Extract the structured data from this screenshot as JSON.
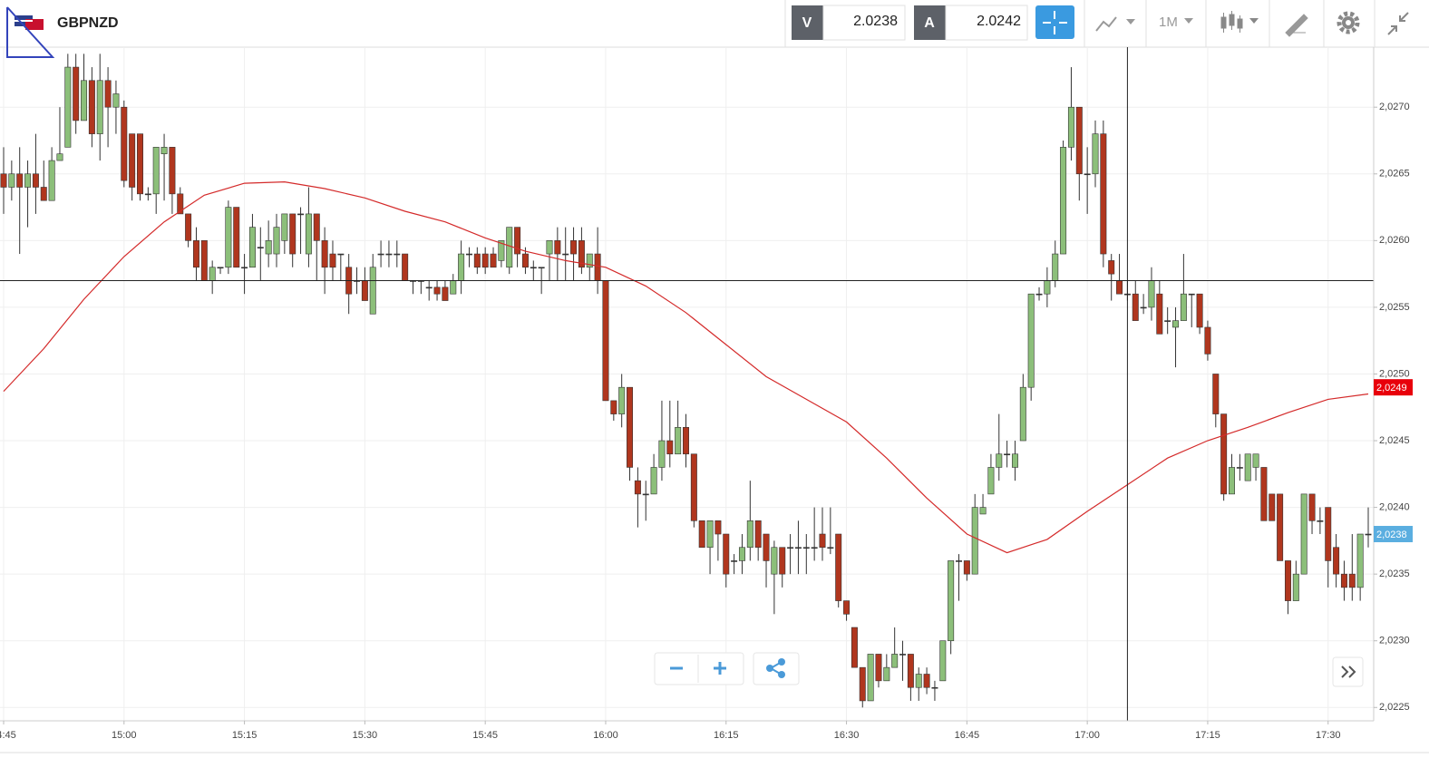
{
  "header": {
    "symbol": "GBPNZD",
    "bid_label": "V",
    "bid": "2.0238",
    "ask_label": "A",
    "ask": "2.0242",
    "interval": "1M"
  },
  "chart_data": {
    "type": "candlestick",
    "x": [
      "14:45",
      "14:46",
      "14:47",
      "14:48",
      "14:49",
      "14:50",
      "14:51",
      "14:52",
      "14:53",
      "14:54",
      "14:55",
      "14:56",
      "14:57",
      "14:58",
      "14:59",
      "15:00",
      "15:01",
      "15:02",
      "15:03",
      "15:04",
      "15:05",
      "15:06",
      "15:07",
      "15:08",
      "15:09",
      "15:10",
      "15:11",
      "15:12",
      "15:13",
      "15:14",
      "15:15",
      "15:16",
      "15:17",
      "15:18",
      "15:19",
      "15:20",
      "15:21",
      "15:22",
      "15:23",
      "15:24",
      "15:25",
      "15:26",
      "15:27",
      "15:28",
      "15:29",
      "15:30",
      "15:31",
      "15:32",
      "15:33",
      "15:34",
      "15:35",
      "15:36",
      "15:37",
      "15:38",
      "15:39",
      "15:40",
      "15:41",
      "15:42",
      "15:43",
      "15:44",
      "15:45",
      "15:46",
      "15:47",
      "15:48",
      "15:49",
      "15:50",
      "15:51",
      "15:52",
      "15:53",
      "15:54",
      "15:55",
      "15:56",
      "15:57",
      "15:58",
      "15:59",
      "16:00",
      "16:01",
      "16:02",
      "16:03",
      "16:04",
      "16:05",
      "16:06",
      "16:07",
      "16:08",
      "16:09",
      "16:10",
      "16:11",
      "16:12",
      "16:13",
      "16:14",
      "16:15",
      "16:16",
      "16:17",
      "16:18",
      "16:19",
      "16:20",
      "16:21",
      "16:22",
      "16:23",
      "16:24",
      "16:25",
      "16:26",
      "16:27",
      "16:28",
      "16:29",
      "16:30",
      "16:31",
      "16:32",
      "16:33",
      "16:34",
      "16:35",
      "16:36",
      "16:37",
      "16:38",
      "16:39",
      "16:40",
      "16:41",
      "16:42",
      "16:43",
      "16:44",
      "16:45",
      "16:46",
      "16:47",
      "16:48",
      "16:49",
      "16:50",
      "16:51",
      "16:52",
      "16:53",
      "16:54",
      "16:55",
      "16:56",
      "16:57",
      "16:58",
      "16:59",
      "17:00",
      "17:01",
      "17:02",
      "17:03",
      "17:04",
      "17:05",
      "17:06",
      "17:07",
      "17:08",
      "17:09",
      "17:10",
      "17:11",
      "17:12",
      "17:13",
      "17:14",
      "17:15",
      "17:16",
      "17:17",
      "17:18",
      "17:19",
      "17:20",
      "17:21",
      "17:22",
      "17:23",
      "17:24",
      "17:25",
      "17:26",
      "17:27",
      "17:28",
      "17:29",
      "17:30",
      "17:31",
      "17:32",
      "17:33",
      "17:34",
      "17:35"
    ],
    "open": [
      2.0265,
      2.0264,
      2.0265,
      2.0264,
      2.0265,
      2.0264,
      2.0263,
      2.0266,
      2.0267,
      2.0273,
      2.0269,
      2.0272,
      2.0268,
      2.0272,
      2.027,
      2.027,
      2.0268,
      2.0268,
      2.02635,
      2.02635,
      2.02665,
      2.0267,
      2.02635,
      2.0262,
      2.026,
      2.026,
      2.0257,
      2.0258,
      2.0258,
      2.02625,
      2.0258,
      2.0258,
      2.02595,
      2.0259,
      2.0259,
      2.026,
      2.0262,
      2.0262,
      2.0259,
      2.0262,
      2.026,
      2.0259,
      2.0259,
      2.0258,
      2.0257,
      2.0257,
      2.02545,
      2.0259,
      2.0259,
      2.0259,
      2.0259,
      2.0257,
      2.0257,
      2.02565,
      2.02565,
      2.02565,
      2.0256,
      2.0257,
      2.0259,
      2.0259,
      2.0259,
      2.0259,
      2.02585,
      2.0258,
      2.0261,
      2.0259,
      2.0258,
      2.0258,
      2.0259,
      2.026,
      2.0259,
      2.026,
      2.026,
      2.0258,
      2.0259,
      2.0257,
      2.0248,
      2.0247,
      2.0249,
      2.0242,
      2.0241,
      2.0241,
      2.0243,
      2.0245,
      2.0244,
      2.0246,
      2.0244,
      2.0239,
      2.0237,
      2.0239,
      2.0238,
      2.0236,
      2.0236,
      2.0237,
      2.0239,
      2.0238,
      2.0235,
      2.0237,
      2.0237,
      2.0237,
      2.0237,
      2.0237,
      2.0238,
      2.0237,
      2.0238,
      2.0233,
      2.0231,
      2.0228,
      2.02255,
      2.0229,
      2.0227,
      2.0228,
      2.0229,
      2.0229,
      2.02265,
      2.02275,
      2.02265,
      2.0227,
      2.023,
      2.0236,
      2.0236,
      2.0235,
      2.02395,
      2.0241,
      2.0243,
      2.0244,
      2.0243,
      2.0245,
      2.0249,
      2.0256,
      2.0256,
      2.0257,
      2.0259,
      2.0267,
      2.027,
      2.0265,
      2.0265,
      2.0268,
      2.02585,
      2.0257,
      2.0256,
      2.0256,
      2.0255,
      2.0255,
      2.0256,
      2.0254,
      2.02535,
      2.0254,
      2.0256,
      2.0256,
      2.02535,
      2.025,
      2.0247,
      2.0241,
      2.0243,
      2.0242,
      2.0243,
      2.0243,
      2.0241,
      2.0241,
      2.0236,
      2.0233,
      2.0235,
      2.0241,
      2.0239,
      2.024,
      2.0237,
      2.0235,
      2.0235,
      2.0234,
      2.0238
    ],
    "high": [
      2.0267,
      2.0266,
      2.0267,
      2.0266,
      2.0268,
      2.0266,
      2.0267,
      2.027,
      2.0274,
      2.0274,
      2.0274,
      2.0273,
      2.0274,
      2.0273,
      2.0272,
      2.02705,
      2.0268,
      2.0268,
      2.0264,
      2.0267,
      2.0268,
      2.0267,
      2.0264,
      2.0262,
      2.0261,
      2.026,
      2.02585,
      2.0258,
      2.0263,
      2.02625,
      2.0259,
      2.0262,
      2.0261,
      2.02615,
      2.0262,
      2.0262,
      2.0262,
      2.02625,
      2.0264,
      2.0262,
      2.0261,
      2.026,
      2.0259,
      2.0259,
      2.0258,
      2.0258,
      2.0259,
      2.026,
      2.026,
      2.026,
      2.0259,
      2.0257,
      2.0257,
      2.0257,
      2.0257,
      2.0257,
      2.02575,
      2.026,
      2.02595,
      2.02595,
      2.02595,
      2.02595,
      2.026,
      2.0261,
      2.0261,
      2.02595,
      2.02585,
      2.0258,
      2.026,
      2.0261,
      2.0261,
      2.0261,
      2.0261,
      2.0259,
      2.0261,
      2.0257,
      2.0248,
      2.025,
      2.0249,
      2.0243,
      2.0242,
      2.0244,
      2.0248,
      2.0248,
      2.0248,
      2.0247,
      2.0244,
      2.0239,
      2.0239,
      2.0239,
      2.0238,
      2.02365,
      2.0238,
      2.0242,
      2.0239,
      2.0238,
      2.02375,
      2.0237,
      2.0238,
      2.0239,
      2.0238,
      2.024,
      2.024,
      2.024,
      2.0238,
      2.0233,
      2.0231,
      2.0228,
      2.0229,
      2.0229,
      2.0229,
      2.0231,
      2.023,
      2.0229,
      2.0228,
      2.0228,
      2.0227,
      2.023,
      2.0236,
      2.02365,
      2.0236,
      2.0241,
      2.0241,
      2.0244,
      2.0247,
      2.0245,
      2.0245,
      2.025,
      2.0256,
      2.02565,
      2.0258,
      2.026,
      2.02675,
      2.0273,
      2.027,
      2.0267,
      2.0269,
      2.0269,
      2.0259,
      2.0259,
      2.0257,
      2.0257,
      2.0256,
      2.0258,
      2.0257,
      2.0255,
      2.0255,
      2.0259,
      2.0256,
      2.0256,
      2.0254,
      2.025,
      2.0247,
      2.0244,
      2.0244,
      2.0244,
      2.0244,
      2.0243,
      2.0241,
      2.0241,
      2.0236,
      2.0236,
      2.0241,
      2.0241,
      2.024,
      2.024,
      2.0238,
      2.0236,
      2.0238,
      2.0238,
      2.024
    ],
    "low": [
      2.0262,
      2.0263,
      2.0259,
      2.0261,
      2.0262,
      2.0263,
      2.0263,
      2.0266,
      2.0267,
      2.0268,
      2.0269,
      2.0267,
      2.0266,
      2.0267,
      2.0268,
      2.0264,
      2.0263,
      2.0263,
      2.0263,
      2.0262,
      2.0263,
      2.0262,
      2.0262,
      2.02595,
      2.0257,
      2.0257,
      2.0256,
      2.02575,
      2.02575,
      2.0258,
      2.0256,
      2.0258,
      2.0257,
      2.0258,
      2.0258,
      2.0259,
      2.0258,
      2.0259,
      2.0258,
      2.0257,
      2.0256,
      2.0257,
      2.0257,
      2.02545,
      2.0256,
      2.02555,
      2.02545,
      2.0258,
      2.0258,
      2.0258,
      2.0257,
      2.0256,
      2.0256,
      2.02555,
      2.02555,
      2.02555,
      2.0256,
      2.0256,
      2.0258,
      2.02575,
      2.02575,
      2.0258,
      2.0258,
      2.02575,
      2.0258,
      2.02575,
      2.0257,
      2.0256,
      2.0257,
      2.0257,
      2.0257,
      2.0257,
      2.02575,
      2.0257,
      2.0256,
      2.0248,
      2.02465,
      2.0246,
      2.0242,
      2.02385,
      2.0239,
      2.0241,
      2.0242,
      2.0243,
      2.0244,
      2.0243,
      2.02385,
      2.0237,
      2.0235,
      2.0236,
      2.0234,
      2.0235,
      2.0235,
      2.0236,
      2.0236,
      2.0234,
      2.0232,
      2.0234,
      2.0235,
      2.0235,
      2.0235,
      2.0236,
      2.0236,
      2.02365,
      2.02325,
      2.02315,
      2.0228,
      2.0225,
      2.02255,
      2.02265,
      2.0227,
      2.0228,
      2.0227,
      2.02255,
      2.02255,
      2.0226,
      2.02255,
      2.0227,
      2.0229,
      2.0233,
      2.02345,
      2.0235,
      2.02395,
      2.0241,
      2.0242,
      2.0243,
      2.0242,
      2.0245,
      2.0248,
      2.02555,
      2.0255,
      2.02565,
      2.0259,
      2.0266,
      2.0263,
      2.0262,
      2.0264,
      2.0258,
      2.02555,
      2.0256,
      2.02555,
      2.0254,
      2.02545,
      2.0254,
      2.0253,
      2.0253,
      2.02505,
      2.0254,
      2.02535,
      2.0253,
      2.0251,
      2.0246,
      2.02405,
      2.0241,
      2.0242,
      2.0242,
      2.0242,
      2.0239,
      2.0239,
      2.0236,
      2.0232,
      2.0233,
      2.0235,
      2.0238,
      2.0238,
      2.0234,
      2.0234,
      2.0233,
      2.0233,
      2.0233,
      2.0237
    ],
    "close": [
      2.0264,
      2.0265,
      2.0264,
      2.0265,
      2.0264,
      2.0263,
      2.0266,
      2.02665,
      2.0273,
      2.0269,
      2.0272,
      2.0268,
      2.0272,
      2.027,
      2.0271,
      2.02645,
      2.0264,
      2.02635,
      2.02635,
      2.0267,
      2.0267,
      2.02635,
      2.0262,
      2.026,
      2.0258,
      2.0257,
      2.0258,
      2.0258,
      2.02625,
      2.0258,
      2.0258,
      2.0261,
      2.02595,
      2.026,
      2.0261,
      2.0262,
      2.0259,
      2.0262,
      2.0262,
      2.026,
      2.0258,
      2.0258,
      2.0259,
      2.0256,
      2.0257,
      2.02555,
      2.0258,
      2.0259,
      2.0259,
      2.0259,
      2.0257,
      2.0257,
      2.0257,
      2.02565,
      2.0256,
      2.02555,
      2.0257,
      2.0259,
      2.0259,
      2.0258,
      2.0258,
      2.0258,
      2.026,
      2.0261,
      2.0259,
      2.0258,
      2.0258,
      2.0258,
      2.026,
      2.0259,
      2.0259,
      2.0259,
      2.0258,
      2.0259,
      2.0257,
      2.0248,
      2.0247,
      2.0249,
      2.0243,
      2.0241,
      2.0241,
      2.0243,
      2.0245,
      2.0244,
      2.0246,
      2.0244,
      2.0239,
      2.0237,
      2.0239,
      2.0238,
      2.0235,
      2.0236,
      2.0237,
      2.0239,
      2.0237,
      2.0236,
      2.0237,
      2.0235,
      2.0237,
      2.0237,
      2.0237,
      2.0237,
      2.0237,
      2.0237,
      2.0233,
      2.0232,
      2.0228,
      2.02255,
      2.0229,
      2.0227,
      2.0228,
      2.0229,
      2.0229,
      2.02265,
      2.02275,
      2.02265,
      2.02265,
      2.023,
      2.0236,
      2.0236,
      2.0235,
      2.024,
      2.024,
      2.0243,
      2.0244,
      2.0244,
      2.0244,
      2.0249,
      2.0256,
      2.0256,
      2.0257,
      2.0259,
      2.0267,
      2.027,
      2.0265,
      2.0265,
      2.0268,
      2.0259,
      2.02575,
      2.0256,
      2.0256,
      2.0254,
      2.0255,
      2.0257,
      2.0253,
      2.0254,
      2.0254,
      2.0256,
      2.0256,
      2.02535,
      2.02515,
      2.0247,
      2.0241,
      2.0243,
      2.0243,
      2.0244,
      2.0244,
      2.0239,
      2.0239,
      2.0236,
      2.0233,
      2.0235,
      2.0241,
      2.0239,
      2.0239,
      2.0236,
      2.0235,
      2.0234,
      2.0234,
      2.0238,
      2.0238
    ],
    "up_color": "#8cbf7a",
    "down_color": "#b0361e",
    "ma": {
      "color": "#d42a2a",
      "x": [
        "14:45",
        "14:50",
        "14:55",
        "15:00",
        "15:05",
        "15:10",
        "15:15",
        "15:20",
        "15:25",
        "15:30",
        "15:35",
        "15:40",
        "15:45",
        "15:50",
        "15:55",
        "16:00",
        "16:05",
        "16:10",
        "16:15",
        "16:20",
        "16:25",
        "16:30",
        "16:35",
        "16:40",
        "16:45",
        "16:50",
        "16:55",
        "17:00",
        "17:05",
        "17:10",
        "17:15",
        "17:20",
        "17:25",
        "17:30",
        "17:35"
      ],
      "values": [
        2.02487,
        2.02519,
        2.02556,
        2.02588,
        2.02614,
        2.02634,
        2.02643,
        2.02644,
        2.02639,
        2.02632,
        2.02622,
        2.02614,
        2.02602,
        2.02592,
        2.02585,
        2.0258,
        2.02566,
        2.02546,
        2.02522,
        2.02498,
        2.02481,
        2.02464,
        2.02437,
        2.02407,
        2.0238,
        2.02366,
        2.02376,
        2.02397,
        2.02417,
        2.02437,
        2.0245,
        2.0246,
        2.02471,
        2.02481,
        2.02485
      ]
    },
    "ylim": [
      2.0224,
      2.02745
    ],
    "yticks": [
      {
        "value": 2.0225,
        "label": "2,0225"
      },
      {
        "value": 2.023,
        "label": "2,0230"
      },
      {
        "value": 2.0235,
        "label": "2,0235"
      },
      {
        "value": 2.024,
        "label": "2,0240"
      },
      {
        "value": 2.0245,
        "label": "2,0245"
      },
      {
        "value": 2.025,
        "label": "2,0250"
      },
      {
        "value": 2.0255,
        "label": "2,0255"
      },
      {
        "value": 2.026,
        "label": "2,0260"
      },
      {
        "value": 2.0265,
        "label": "2,0265"
      },
      {
        "value": 2.027,
        "label": "2,0270"
      }
    ],
    "xticks": [
      "14:45",
      "15:00",
      "15:15",
      "15:30",
      "15:45",
      "16:00",
      "16:15",
      "16:30",
      "16:45",
      "17:00",
      "17:15",
      "17:30"
    ],
    "grid": true,
    "crosshair": {
      "x": "17:05",
      "y": 2.0257
    },
    "price_labels": [
      {
        "value": 2.0249,
        "label": "2,0249",
        "color": "#e8000b"
      },
      {
        "value": 2.0238,
        "label": "2,0238",
        "color": "#5aaee0"
      }
    ]
  }
}
